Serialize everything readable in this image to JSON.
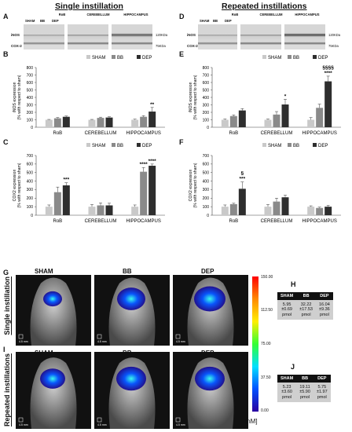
{
  "headers": {
    "left": "Single instillation",
    "right": "Repeated instillations"
  },
  "panels": {
    "A": "A",
    "B": "B",
    "C": "C",
    "D": "D",
    "E": "E",
    "F": "F",
    "G": "G",
    "H": "H",
    "I": "I",
    "J": "J"
  },
  "blots": {
    "row_inos": "iNOS",
    "row_cox": "COX-2",
    "regions": [
      "RoB",
      "CEREBELLUM",
      "HIPPOCAMPUS"
    ],
    "lanes": [
      "SHAM",
      "BB",
      "DEP"
    ],
    "kda_top": "120KDa",
    "kda_bottom": "75KDa"
  },
  "legend": [
    "SHAM",
    "BB",
    "DEP"
  ],
  "colors": {
    "SHAM": "#c9c9c9",
    "BB": "#8a8a8a",
    "DEP": "#2e2e2e"
  },
  "ylabel_inos": "iNOS expression (% with respect to sham)",
  "ylabel_cox": "COX2 expression (% with respect to sham)",
  "chart_data": [
    {
      "panel": "B",
      "type": "bar",
      "categories": [
        "RoB",
        "CEREBELLUM",
        "HIPPOCAMPUS"
      ],
      "ylim": [
        0,
        800
      ],
      "yticks": [
        0,
        100,
        200,
        300,
        400,
        500,
        600,
        700,
        800
      ],
      "series": [
        {
          "name": "SHAM",
          "values": [
            100,
            100,
            100
          ],
          "err": [
            5,
            5,
            8
          ]
        },
        {
          "name": "BB",
          "values": [
            120,
            125,
            140
          ],
          "err": [
            10,
            10,
            15
          ]
        },
        {
          "name": "DEP",
          "values": [
            140,
            130,
            210
          ],
          "err": [
            10,
            10,
            55
          ]
        }
      ],
      "annotations": [
        {
          "group": 2,
          "bar": 2,
          "text": "**"
        }
      ]
    },
    {
      "panel": "E",
      "type": "bar",
      "categories": [
        "RoB",
        "CEREBELLUM",
        "HIPPOCAMPUS"
      ],
      "ylim": [
        0,
        800
      ],
      "yticks": [
        0,
        100,
        200,
        300,
        400,
        500,
        600,
        700,
        800
      ],
      "series": [
        {
          "name": "SHAM",
          "values": [
            100,
            100,
            100
          ],
          "err": [
            10,
            10,
            30
          ]
        },
        {
          "name": "BB",
          "values": [
            150,
            170,
            260
          ],
          "err": [
            15,
            40,
            50
          ]
        },
        {
          "name": "DEP",
          "values": [
            225,
            305,
            615
          ],
          "err": [
            25,
            70,
            70
          ]
        }
      ],
      "annotations": [
        {
          "group": 1,
          "bar": 2,
          "text": "*"
        },
        {
          "group": 2,
          "bar": 2,
          "text": "****"
        },
        {
          "group": 2,
          "bar": 2,
          "text": "§§§§",
          "level": 2
        }
      ]
    },
    {
      "panel": "C",
      "type": "bar",
      "categories": [
        "RoB",
        "CEREBELLUM",
        "HIPPOCAMPUS"
      ],
      "ylim": [
        0,
        700
      ],
      "yticks": [
        0,
        100,
        200,
        300,
        400,
        500,
        600,
        700
      ],
      "series": [
        {
          "name": "SHAM",
          "values": [
            100,
            100,
            100
          ],
          "err": [
            20,
            25,
            20
          ]
        },
        {
          "name": "BB",
          "values": [
            270,
            115,
            510
          ],
          "err": [
            60,
            30,
            50
          ]
        },
        {
          "name": "DEP",
          "values": [
            350,
            115,
            580
          ],
          "err": [
            30,
            25,
            20
          ]
        }
      ],
      "annotations": [
        {
          "group": 0,
          "bar": 2,
          "text": "***"
        },
        {
          "group": 2,
          "bar": 1,
          "text": "****"
        },
        {
          "group": 2,
          "bar": 2,
          "text": "****"
        }
      ]
    },
    {
      "panel": "F",
      "type": "bar",
      "categories": [
        "RoB",
        "CEREBELLUM",
        "HIPPOCAMPUS"
      ],
      "ylim": [
        0,
        700
      ],
      "yticks": [
        0,
        100,
        200,
        300,
        400,
        500,
        600,
        700
      ],
      "series": [
        {
          "name": "SHAM",
          "values": [
            100,
            100,
            100
          ],
          "err": [
            20,
            25,
            10
          ]
        },
        {
          "name": "BB",
          "values": [
            130,
            160,
            85
          ],
          "err": [
            10,
            40,
            10
          ]
        },
        {
          "name": "DEP",
          "values": [
            310,
            210,
            100
          ],
          "err": [
            80,
            25,
            15
          ]
        }
      ],
      "annotations": [
        {
          "group": 0,
          "bar": 2,
          "text": "***"
        },
        {
          "group": 0,
          "bar": 2,
          "text": "§",
          "level": 2
        }
      ]
    }
  ],
  "imaging": {
    "cols": [
      "SHAM",
      "BB",
      "DEP"
    ],
    "row_single": "Single instillation",
    "row_repeated": "Repeated instillations",
    "scale_text": "4.5 mm",
    "colorbar": {
      "ticks": [
        "150.00",
        "112.50",
        "75.00",
        "37.50",
        "0.00"
      ],
      "unit": "[nM]"
    }
  },
  "tableH": {
    "headers": [
      "SHAM",
      "BB",
      "DEP"
    ],
    "values": [
      "5.95\n±0.69\npmol",
      "32.22\n±17.53\npmol",
      "16.04\n±9.36\npmol"
    ]
  },
  "tableJ": {
    "headers": [
      "SHAM",
      "BB",
      "DEP"
    ],
    "values": [
      "5.23\n±3.60\npmol",
      "19.11\n±5.90\npmol",
      "5.75\n±1.97\npmol"
    ]
  }
}
